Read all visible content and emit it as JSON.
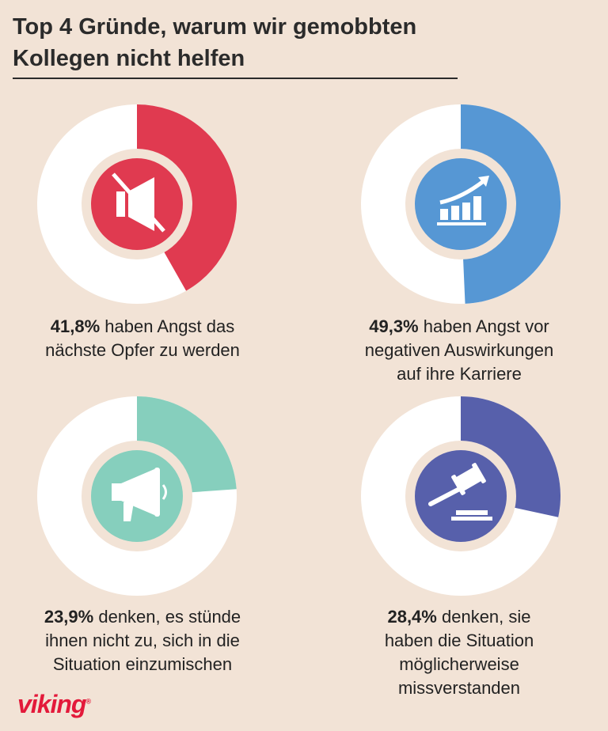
{
  "header": {
    "title_line1": "Top 4 Gründe, warum wir gemobbten",
    "title_line2": "Kollegen nicht helfen"
  },
  "colors": {
    "background": "#f2e3d6",
    "ring_base": "#ffffff",
    "inner_ring": "#f2e3d6",
    "red": "#e03a50",
    "blue": "#5697d4",
    "mint": "#86cfbd",
    "indigo": "#5760ab",
    "logo": "#e3193a"
  },
  "chart_data": {
    "type": "pie",
    "variant": "donut",
    "items": [
      {
        "value": 41.8,
        "value_label": "41,8%",
        "text_lines": [
          "haben Angst das",
          "nächste Opfer zu werden"
        ],
        "color": "#e03a50",
        "icon": "muted-speaker-icon"
      },
      {
        "value": 49.3,
        "value_label": "49,3%",
        "text_lines": [
          "haben Angst vor",
          "negativen Auswirkungen",
          "auf ihre Karriere"
        ],
        "color": "#5697d4",
        "icon": "growth-chart-icon"
      },
      {
        "value": 23.9,
        "value_label": "23,9%",
        "text_lines": [
          "denken, es stünde",
          "ihnen nicht zu, sich in die",
          "Situation einzumischen"
        ],
        "color": "#86cfbd",
        "icon": "megaphone-icon"
      },
      {
        "value": 28.4,
        "value_label": "28,4%",
        "text_lines": [
          "denken, sie",
          "haben die Situation",
          "möglicherweise",
          "missverstanden"
        ],
        "color": "#5760ab",
        "icon": "gavel-icon"
      }
    ]
  },
  "footer": {
    "logo_text": "viking",
    "logo_mark": "®"
  }
}
